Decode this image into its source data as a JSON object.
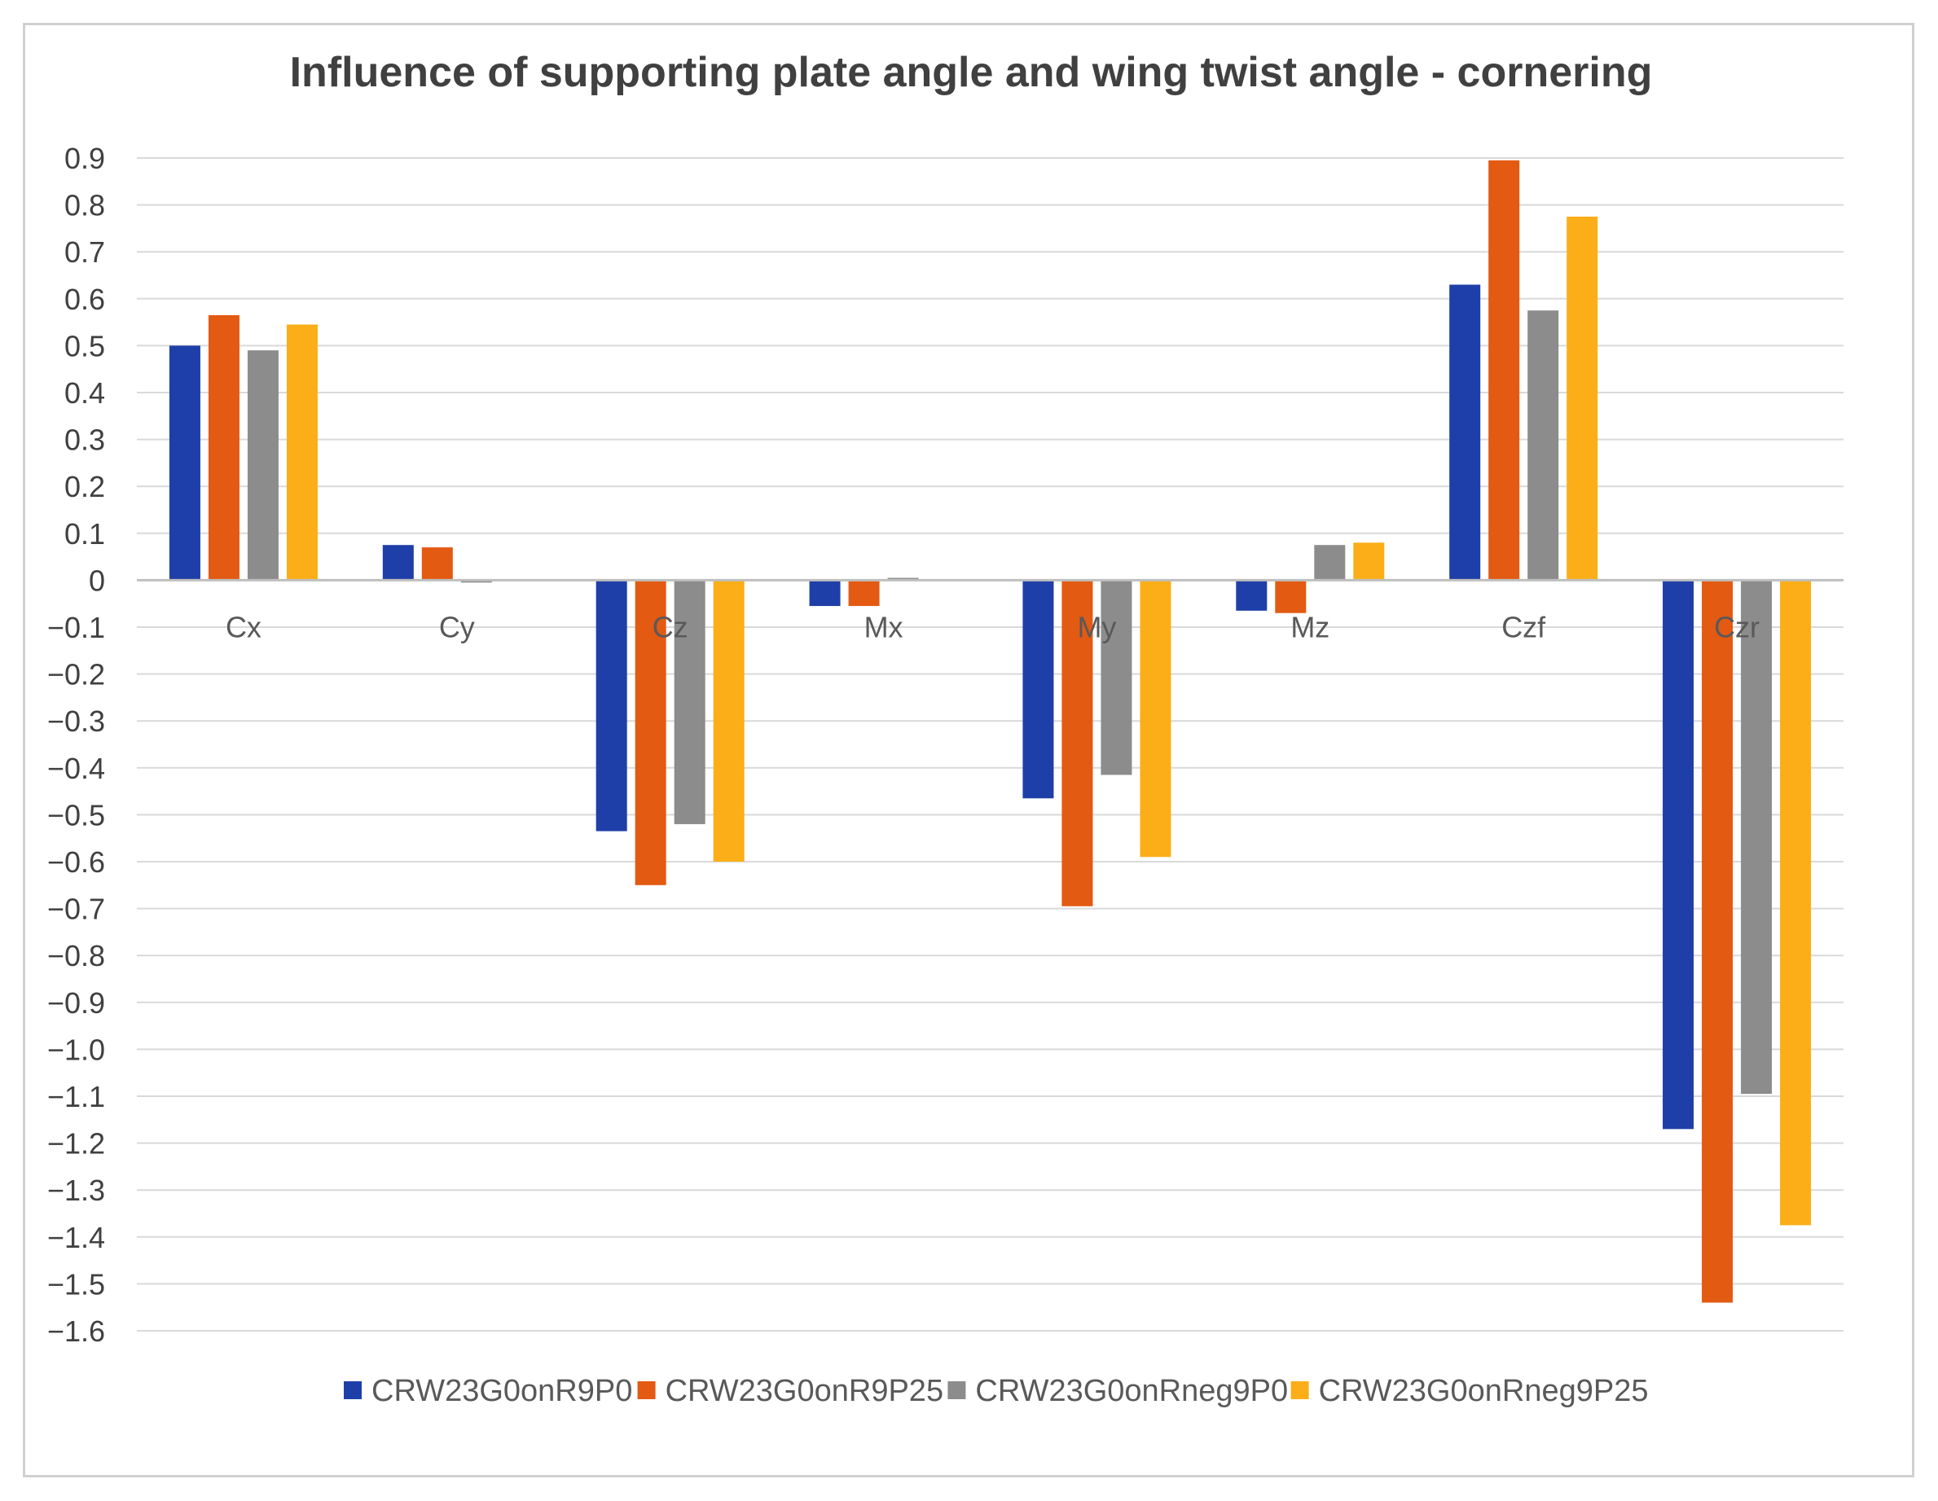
{
  "chart_data": {
    "type": "bar",
    "title": "Influence of supporting plate angle and wing twist angle - cornering",
    "xlabel": "",
    "ylabel": "",
    "ylim": [
      -1.6,
      0.9
    ],
    "ytick_step": 0.1,
    "grid": true,
    "legend_position": "bottom",
    "categories": [
      "Cx",
      "Cy",
      "Cz",
      "Mx",
      "My",
      "Mz",
      "Czf",
      "Czr"
    ],
    "series": [
      {
        "name": "CRW23G0onR9P0",
        "color": "#1f3fa8",
        "values": [
          0.5,
          0.075,
          -0.535,
          -0.055,
          -0.465,
          -0.065,
          0.63,
          -1.17
        ]
      },
      {
        "name": "CRW23G0onR9P25",
        "color": "#e35a12",
        "values": [
          0.565,
          0.07,
          -0.65,
          -0.055,
          -0.695,
          -0.07,
          0.895,
          -1.54
        ]
      },
      {
        "name": "CRW23G0onRneg9P0",
        "color": "#8c8c8c",
        "values": [
          0.49,
          -0.005,
          -0.52,
          0.005,
          -0.415,
          0.075,
          0.575,
          -1.095
        ]
      },
      {
        "name": "CRW23G0onRneg9P25",
        "color": "#fbae17",
        "values": [
          0.545,
          0.0,
          -0.6,
          0.0,
          -0.59,
          0.08,
          0.775,
          -1.375
        ]
      }
    ]
  }
}
